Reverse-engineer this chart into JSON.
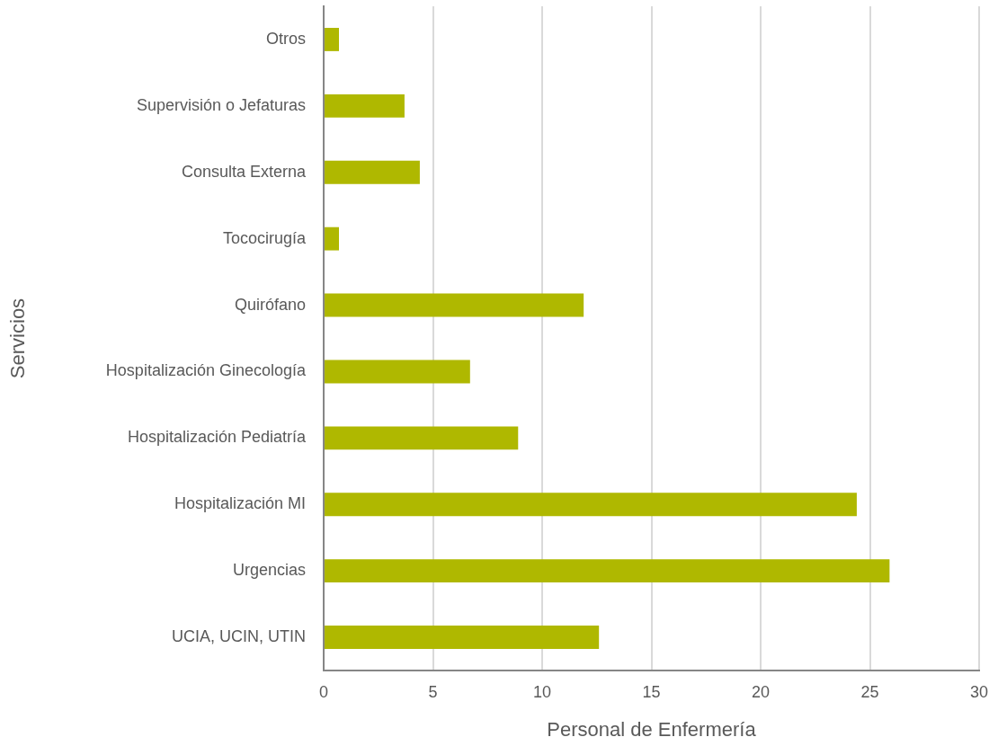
{
  "chart_data": {
    "type": "bar",
    "orientation": "horizontal",
    "categories": [
      "Otros",
      "Supervisión o Jefaturas",
      "Consulta Externa",
      "Tococirugía",
      "Quirófano",
      "Hospitalización Ginecología",
      "Hospitalización Pediatría",
      "Hospitalización MI",
      "Urgencias",
      "UCIA, UCIN, UTIN"
    ],
    "values": [
      0.7,
      3.7,
      4.4,
      0.7,
      11.9,
      6.7,
      8.9,
      24.4,
      25.9,
      12.6
    ],
    "color": "#afb800",
    "xlabel": "Personal de Enfermería",
    "ylabel": "Servicios",
    "xlim": [
      0,
      30
    ],
    "xticks": [
      0,
      5,
      10,
      15,
      20,
      25,
      30
    ],
    "grid": "x"
  }
}
